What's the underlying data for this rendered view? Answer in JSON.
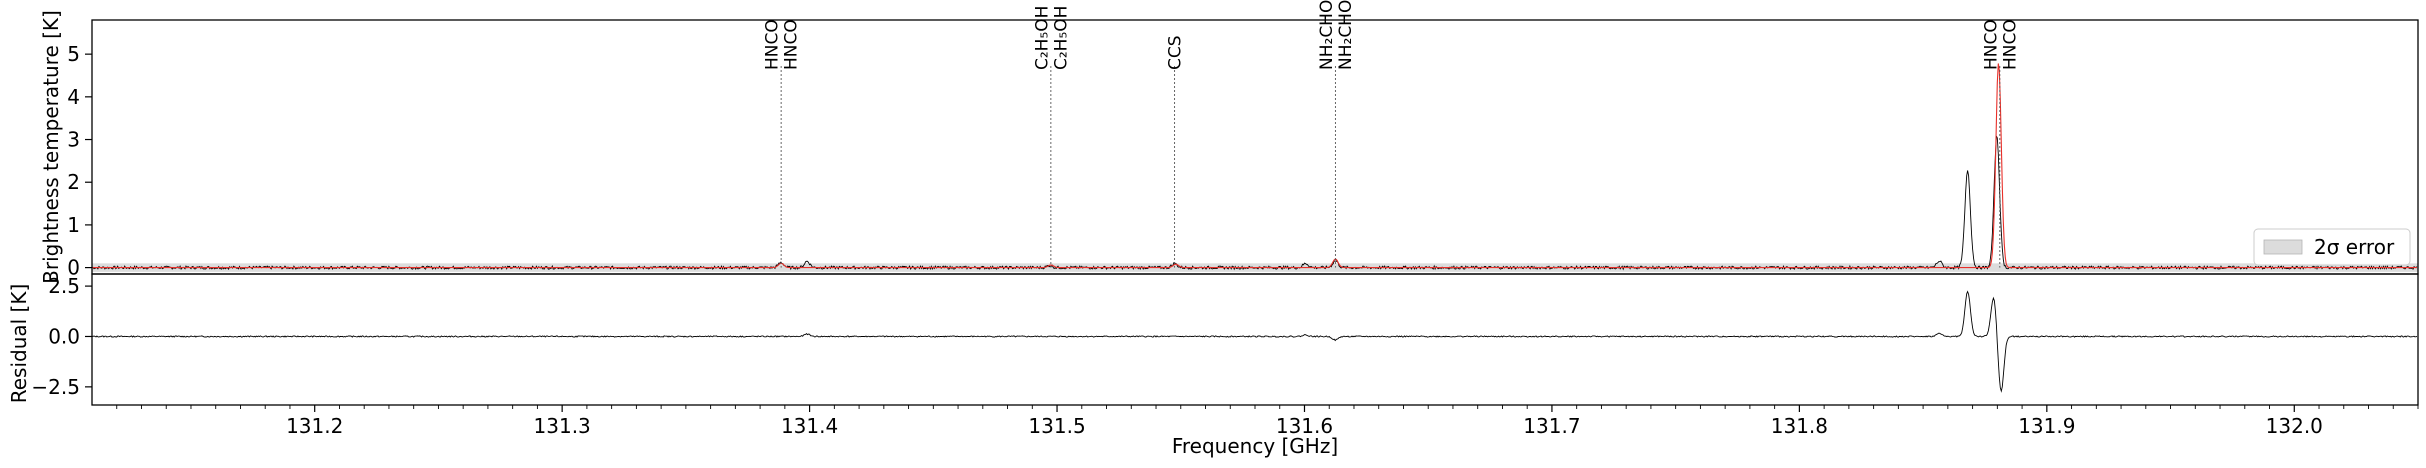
{
  "chart_data": [
    {
      "type": "line",
      "panel": "spectrum",
      "ylabel": "Brightness temperature [K]",
      "xlim": [
        131.11,
        132.05
      ],
      "ylim": [
        -0.15,
        5.8
      ],
      "yticks": [
        0,
        1,
        2,
        3,
        4,
        5
      ],
      "grid": false,
      "legend": {
        "placement": "lower-right",
        "entries": [
          {
            "name": "2σ error",
            "color": "#dcdcdc"
          }
        ]
      },
      "colors": {
        "observed": "#000000",
        "model": "#e8302a",
        "marker": "#555555",
        "error": "#dcdcdc"
      },
      "observed_peaks": [
        {
          "x": 131.3885,
          "y": 0.12
        },
        {
          "x": 131.399,
          "y": 0.15
        },
        {
          "x": 131.497,
          "y": 0.05
        },
        {
          "x": 131.5475,
          "y": 0.09
        },
        {
          "x": 131.6005,
          "y": 0.1
        },
        {
          "x": 131.6125,
          "y": 0.16
        },
        {
          "x": 131.8565,
          "y": 0.15
        },
        {
          "x": 131.868,
          "y": 2.3
        },
        {
          "x": 131.8798,
          "y": 3.1
        }
      ],
      "model_peaks": [
        {
          "x": 131.3885,
          "y": 0.1
        },
        {
          "x": 131.4975,
          "y": 0.06
        },
        {
          "x": 131.548,
          "y": 0.08
        },
        {
          "x": 131.6125,
          "y": 0.2
        },
        {
          "x": 131.8805,
          "y": 4.8
        }
      ],
      "line_markers": [
        {
          "x": 131.3885,
          "labels": [
            "HNCO",
            "HNCO"
          ]
        },
        {
          "x": 131.4975,
          "labels": [
            "C₂H₅OH",
            "C₂H₅OH"
          ]
        },
        {
          "x": 131.5475,
          "labels": [
            "CCS"
          ]
        },
        {
          "x": 131.6125,
          "labels": [
            "NH₂CHO",
            "NH₂CHO"
          ]
        },
        {
          "x": 131.881,
          "labels": [
            "HNCO",
            "HNCO"
          ]
        }
      ]
    },
    {
      "type": "line",
      "panel": "residual",
      "xlabel": "Frequency [GHz]",
      "ylabel": "Residual [K]",
      "xlim": [
        131.11,
        132.05
      ],
      "ylim": [
        -3.4,
        3.1
      ],
      "yticks": [
        -2.5,
        0.0,
        2.5
      ],
      "ytick_labels": [
        "−2.5",
        "0.0",
        "2.5"
      ],
      "xticks": [
        131.2,
        131.3,
        131.4,
        131.5,
        131.6,
        131.7,
        131.8,
        131.9,
        132.0
      ],
      "xtick_labels": [
        "131.2",
        "131.3",
        "131.4",
        "131.5",
        "131.6",
        "131.7",
        "131.8",
        "131.9",
        "132.0"
      ],
      "residual_peaks": [
        {
          "x": 131.399,
          "y": 0.12
        },
        {
          "x": 131.6005,
          "y": 0.08
        },
        {
          "x": 131.6125,
          "y": -0.18
        },
        {
          "x": 131.8565,
          "y": 0.15
        },
        {
          "x": 131.868,
          "y": 2.25
        },
        {
          "x": 131.8785,
          "y": 1.95
        },
        {
          "x": 131.8815,
          "y": -2.75
        }
      ]
    }
  ]
}
